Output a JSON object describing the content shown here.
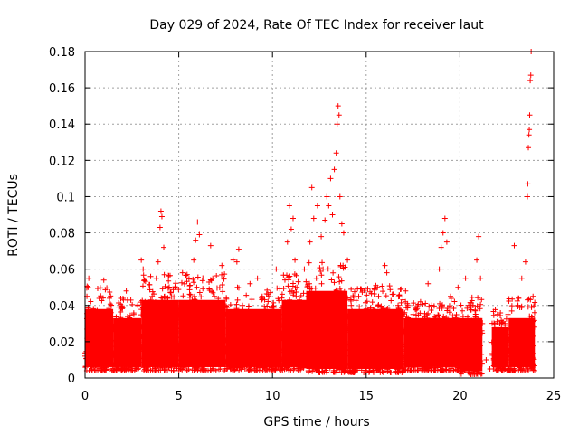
{
  "chart_data": {
    "type": "scatter",
    "title": "Day 029 of 2024, Rate Of TEC Index for receiver laut",
    "xlabel": "GPS time / hours",
    "ylabel": "ROTI / TECUs",
    "xlim": [
      0,
      25
    ],
    "ylim": [
      0,
      0.18
    ],
    "xticks": [
      0,
      5,
      10,
      15,
      20,
      25
    ],
    "yticks": [
      0,
      0.02,
      0.04,
      0.06,
      0.08,
      0.1,
      0.12,
      0.14,
      0.16,
      0.18
    ],
    "xtick_labels": [
      "0",
      "5",
      "10",
      "15",
      "20",
      "25"
    ],
    "ytick_labels": [
      "0",
      "0.02",
      "0.04",
      "0.06",
      "0.08",
      "0.1",
      "0.12",
      "0.14",
      "0.16",
      "0.18"
    ],
    "grid": true,
    "marker": "+",
    "color": "#ff0000",
    "series": [
      {
        "name": "ROTI",
        "points": [
          [
            0.0,
            0.012
          ],
          [
            0.1,
            0.045
          ],
          [
            0.2,
            0.055
          ],
          [
            0.3,
            0.02
          ],
          [
            0.5,
            0.033
          ],
          [
            0.8,
            0.015
          ],
          [
            1.0,
            0.054
          ],
          [
            1.3,
            0.028
          ],
          [
            1.6,
            0.012
          ],
          [
            1.8,
            0.03
          ],
          [
            2.0,
            0.02
          ],
          [
            2.2,
            0.048
          ],
          [
            2.4,
            0.01
          ],
          [
            2.6,
            0.035
          ],
          [
            2.8,
            0.018
          ],
          [
            3.0,
            0.065
          ],
          [
            3.1,
            0.06
          ],
          [
            3.2,
            0.042
          ],
          [
            3.4,
            0.022
          ],
          [
            3.6,
            0.012
          ],
          [
            3.8,
            0.055
          ],
          [
            3.9,
            0.064
          ],
          [
            4.0,
            0.083
          ],
          [
            4.05,
            0.092
          ],
          [
            4.1,
            0.089
          ],
          [
            4.2,
            0.072
          ],
          [
            4.3,
            0.045
          ],
          [
            4.5,
            0.028
          ],
          [
            4.8,
            0.05
          ],
          [
            5.0,
            0.015
          ],
          [
            5.2,
            0.058
          ],
          [
            5.4,
            0.038
          ],
          [
            5.6,
            0.022
          ],
          [
            5.8,
            0.065
          ],
          [
            5.9,
            0.076
          ],
          [
            6.0,
            0.086
          ],
          [
            6.1,
            0.079
          ],
          [
            6.3,
            0.04
          ],
          [
            6.5,
            0.018
          ],
          [
            6.7,
            0.073
          ],
          [
            6.9,
            0.045
          ],
          [
            7.1,
            0.025
          ],
          [
            7.3,
            0.062
          ],
          [
            7.5,
            0.035
          ],
          [
            7.7,
            0.012
          ],
          [
            7.9,
            0.065
          ],
          [
            8.1,
            0.064
          ],
          [
            8.2,
            0.071
          ],
          [
            8.4,
            0.04
          ],
          [
            8.6,
            0.022
          ],
          [
            8.8,
            0.052
          ],
          [
            9.0,
            0.035
          ],
          [
            9.2,
            0.055
          ],
          [
            9.4,
            0.015
          ],
          [
            9.6,
            0.03
          ],
          [
            9.8,
            0.045
          ],
          [
            10.0,
            0.018
          ],
          [
            10.2,
            0.06
          ],
          [
            10.4,
            0.035
          ],
          [
            10.6,
            0.028
          ],
          [
            10.8,
            0.075
          ],
          [
            10.9,
            0.095
          ],
          [
            11.0,
            0.082
          ],
          [
            11.1,
            0.088
          ],
          [
            11.2,
            0.065
          ],
          [
            11.3,
            0.05
          ],
          [
            11.5,
            0.015
          ],
          [
            11.7,
            0.06
          ],
          [
            11.9,
            0.045
          ],
          [
            12.0,
            0.075
          ],
          [
            12.1,
            0.105
          ],
          [
            12.2,
            0.088
          ],
          [
            12.4,
            0.095
          ],
          [
            12.6,
            0.078
          ],
          [
            12.7,
            0.06
          ],
          [
            12.8,
            0.087
          ],
          [
            12.9,
            0.1
          ],
          [
            13.0,
            0.095
          ],
          [
            13.1,
            0.11
          ],
          [
            13.2,
            0.09
          ],
          [
            13.3,
            0.115
          ],
          [
            13.4,
            0.124
          ],
          [
            13.45,
            0.14
          ],
          [
            13.5,
            0.15
          ],
          [
            13.55,
            0.145
          ],
          [
            13.6,
            0.1
          ],
          [
            13.7,
            0.085
          ],
          [
            13.8,
            0.08
          ],
          [
            14.0,
            0.065
          ],
          [
            14.2,
            0.04
          ],
          [
            14.4,
            0.025
          ],
          [
            14.6,
            0.045
          ],
          [
            14.8,
            0.018
          ],
          [
            15.0,
            0.038
          ],
          [
            15.2,
            0.012
          ],
          [
            15.4,
            0.032
          ],
          [
            15.6,
            0.05
          ],
          [
            15.8,
            0.022
          ],
          [
            16.0,
            0.062
          ],
          [
            16.1,
            0.058
          ],
          [
            16.3,
            0.03
          ],
          [
            16.5,
            0.015
          ],
          [
            16.7,
            0.04
          ],
          [
            16.9,
            0.025
          ],
          [
            17.1,
            0.048
          ],
          [
            17.3,
            0.018
          ],
          [
            17.5,
            0.035
          ],
          [
            17.7,
            0.012
          ],
          [
            17.9,
            0.042
          ],
          [
            18.1,
            0.025
          ],
          [
            18.3,
            0.052
          ],
          [
            18.5,
            0.03
          ],
          [
            18.7,
            0.015
          ],
          [
            18.9,
            0.06
          ],
          [
            19.0,
            0.072
          ],
          [
            19.1,
            0.08
          ],
          [
            19.2,
            0.088
          ],
          [
            19.3,
            0.075
          ],
          [
            19.5,
            0.045
          ],
          [
            19.7,
            0.02
          ],
          [
            19.9,
            0.05
          ],
          [
            20.1,
            0.03
          ],
          [
            20.3,
            0.055
          ],
          [
            20.5,
            0.015
          ],
          [
            20.7,
            0.04
          ],
          [
            20.9,
            0.065
          ],
          [
            21.0,
            0.078
          ],
          [
            21.1,
            0.055
          ],
          [
            21.2,
            0.03
          ],
          [
            21.4,
            0.01
          ],
          [
            21.6,
            0.005
          ],
          [
            21.8,
            0.01
          ],
          [
            22.0,
            0.035
          ],
          [
            22.2,
            0.02
          ],
          [
            22.4,
            0.03
          ],
          [
            22.6,
            0.015
          ],
          [
            22.9,
            0.073
          ],
          [
            23.1,
            0.04
          ],
          [
            23.3,
            0.055
          ],
          [
            23.5,
            0.064
          ],
          [
            23.6,
            0.1
          ],
          [
            23.62,
            0.107
          ],
          [
            23.65,
            0.127
          ],
          [
            23.68,
            0.134
          ],
          [
            23.7,
            0.137
          ],
          [
            23.72,
            0.145
          ],
          [
            23.75,
            0.164
          ],
          [
            23.78,
            0.167
          ],
          [
            23.8,
            0.18
          ],
          [
            23.9,
            0.045
          ]
        ],
        "bands": [
          {
            "x": [
              0.0,
              1.5
            ],
            "low": 0.004,
            "high": 0.04
          },
          {
            "x": [
              1.5,
              3.0
            ],
            "low": 0.004,
            "high": 0.035
          },
          {
            "x": [
              3.0,
              5.0
            ],
            "low": 0.004,
            "high": 0.045
          },
          {
            "x": [
              5.0,
              7.5
            ],
            "low": 0.004,
            "high": 0.045
          },
          {
            "x": [
              7.5,
              10.5
            ],
            "low": 0.004,
            "high": 0.04
          },
          {
            "x": [
              10.5,
              11.8
            ],
            "low": 0.004,
            "high": 0.045
          },
          {
            "x": [
              11.8,
              14.0
            ],
            "low": 0.003,
            "high": 0.05
          },
          {
            "x": [
              14.0,
              17.0
            ],
            "low": 0.003,
            "high": 0.04
          },
          {
            "x": [
              17.0,
              20.0
            ],
            "low": 0.004,
            "high": 0.035
          },
          {
            "x": [
              20.0,
              21.2
            ],
            "low": 0.002,
            "high": 0.035
          },
          {
            "x": [
              21.7,
              22.6
            ],
            "low": 0.004,
            "high": 0.03
          },
          {
            "x": [
              22.6,
              24.0
            ],
            "low": 0.004,
            "high": 0.035
          }
        ]
      }
    ]
  }
}
